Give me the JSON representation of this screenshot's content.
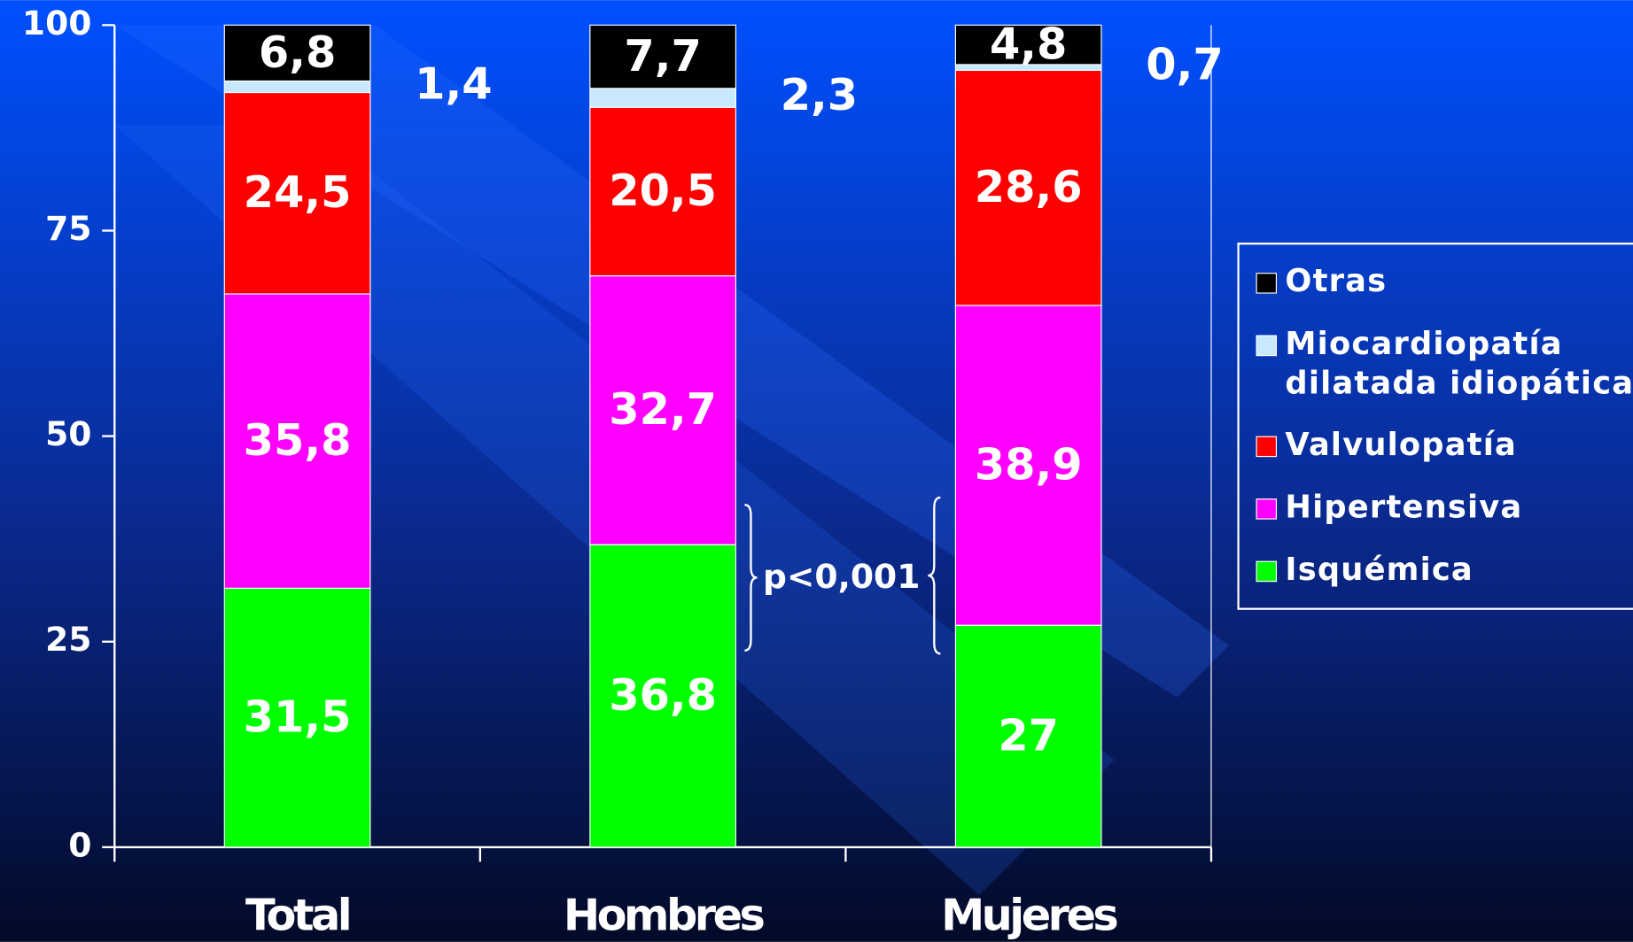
{
  "chart_data": {
    "type": "stacked_bar",
    "categories": [
      "Total",
      "Hombres",
      "Mujeres"
    ],
    "series": [
      {
        "name": "Isquémica",
        "color": "#00ff00",
        "values": [
          31.5,
          36.8,
          27
        ],
        "value_labels": [
          "31,5",
          "36,8",
          "27"
        ]
      },
      {
        "name": "Hipertensiva",
        "color": "#ff00ff",
        "values": [
          35.8,
          32.7,
          38.9
        ],
        "value_labels": [
          "35,8",
          "32,7",
          "38,9"
        ]
      },
      {
        "name": "Valvulopatía",
        "color": "#ff0000",
        "values": [
          24.5,
          20.5,
          28.6
        ],
        "value_labels": [
          "24,5",
          "20,5",
          "28,6"
        ]
      },
      {
        "name": "Miocardiopatía dilatada idiopática",
        "color": "#c8e8ff",
        "values": [
          1.4,
          2.3,
          0.7
        ],
        "value_labels": [
          "1,4",
          "2,3",
          "0,7"
        ]
      },
      {
        "name": "Otras",
        "color": "#000000",
        "values": [
          6.8,
          7.7,
          4.8
        ],
        "value_labels": [
          "6,8",
          "7,7",
          "4,8"
        ]
      }
    ],
    "annotation": "p<0,001",
    "ylim": [
      0,
      100
    ],
    "yticks": [
      0,
      25,
      50,
      75,
      100
    ],
    "legend": "right"
  }
}
